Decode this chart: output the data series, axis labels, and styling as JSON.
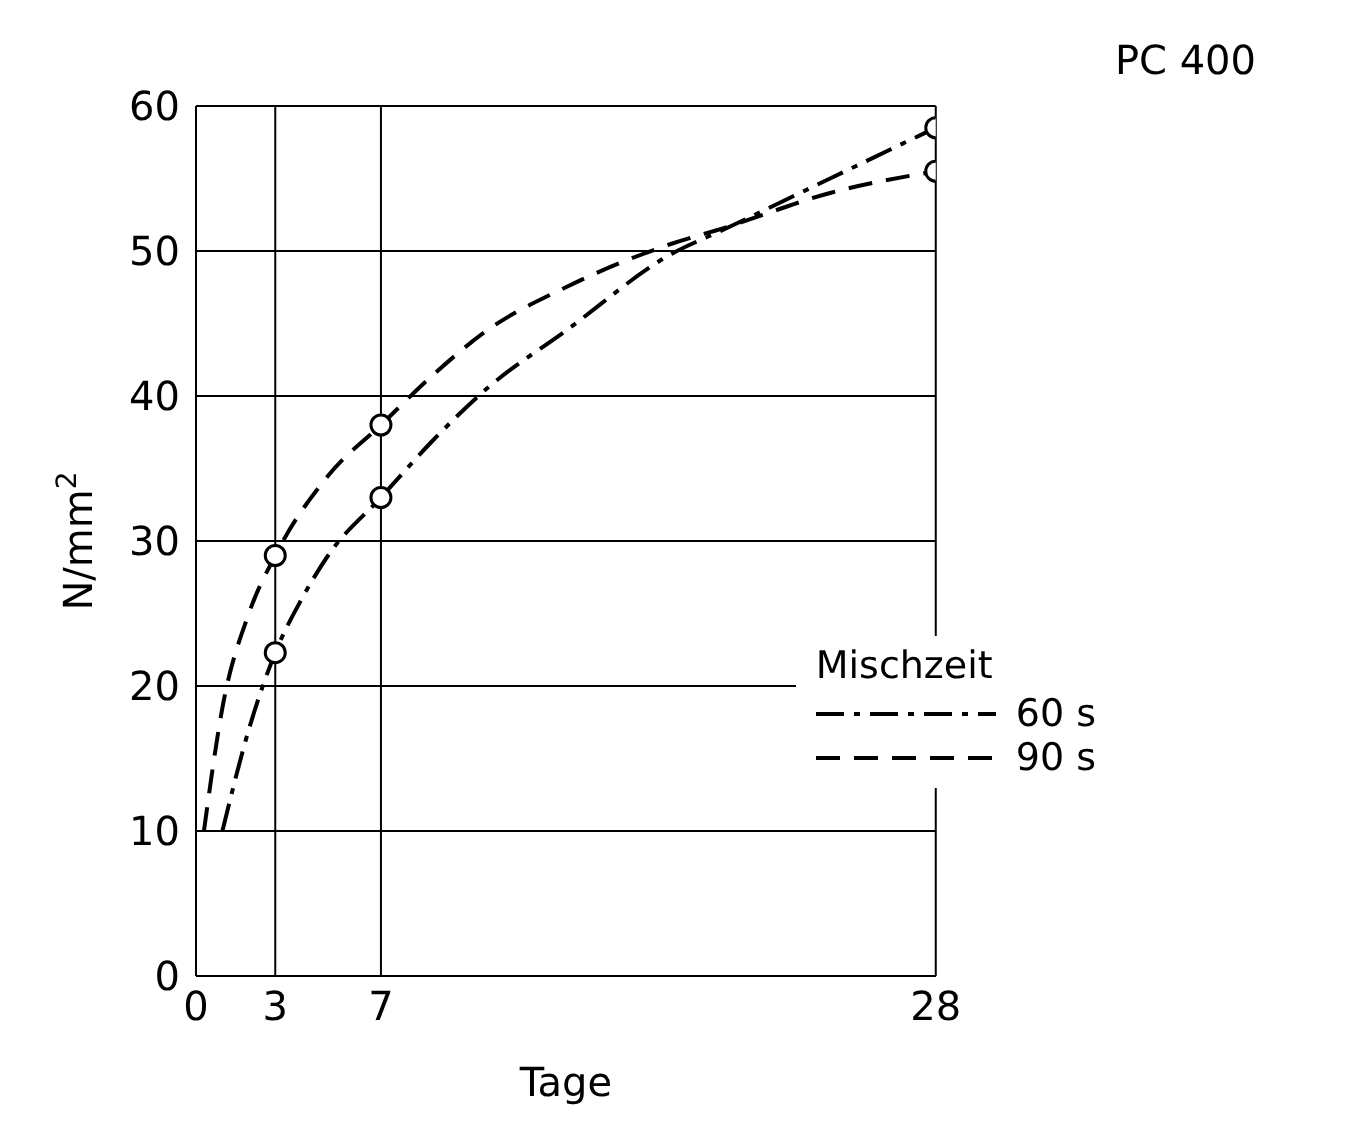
{
  "chart_data": {
    "type": "line",
    "title": "PC 400",
    "xlabel": "Tage",
    "ylabel": "N/mm$^{2}$",
    "legend_title": "Mischzeit",
    "xlim": [
      0,
      28
    ],
    "xticks": [
      0,
      3,
      7,
      28
    ],
    "ylim": [
      0,
      60
    ],
    "yticks": [
      0,
      10,
      20,
      30,
      40,
      50,
      60
    ],
    "grid": true,
    "legend": "right",
    "marker": "none",
    "series": [
      {
        "name": "60 s",
        "color": "#000000",
        "line_style": "dashdot",
        "x": [
          1,
          2,
          3,
          4,
          5,
          7,
          9,
          11,
          14,
          18,
          20,
          24,
          28
        ],
        "values": [
          10,
          17,
          22.3,
          26,
          29,
          33,
          37,
          40.5,
          44.5,
          49.8,
          51.5,
          55,
          58.5
        ]
      },
      {
        "name": "90 s",
        "color": "#000000",
        "line_style": "dashed",
        "x": [
          0.3,
          1,
          2,
          3,
          5,
          7,
          9,
          11,
          14,
          18,
          20,
          24,
          28
        ],
        "values": [
          10,
          18.5,
          25,
          29,
          34.5,
          38,
          41.5,
          44.5,
          47.5,
          50.5,
          51.6,
          54,
          55.5
        ]
      },
      {
        "type": "scatter",
        "color": "#000000",
        "marker": "circle",
        "x": [
          3,
          7,
          28
        ],
        "values": [
          22.3,
          33,
          58.5
        ]
      },
      {
        "type": "scatter",
        "color": "#000000",
        "marker": "circle",
        "x": [
          3,
          7,
          28
        ],
        "values": [
          29,
          38,
          55.5
        ]
      }
    ]
  }
}
